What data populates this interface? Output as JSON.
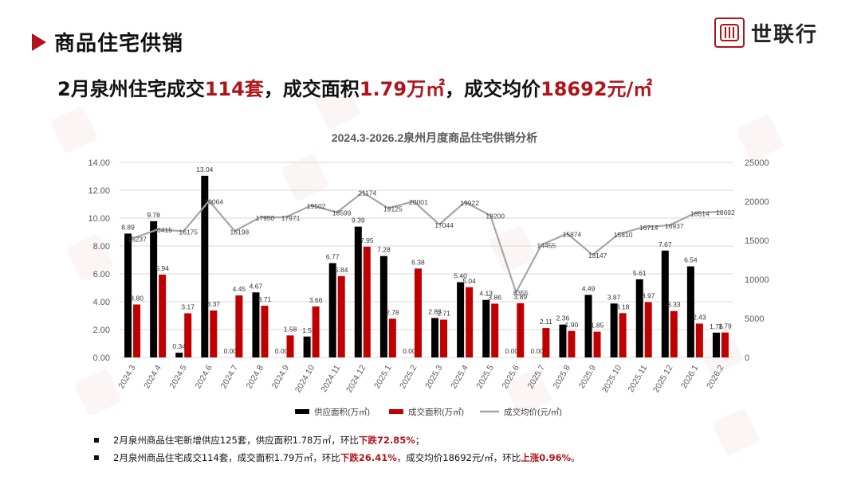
{
  "header": {
    "section_title": "商品住宅供销",
    "logo_text": "世联行",
    "brand_color": "#b0141a"
  },
  "headline": {
    "part1": "2月泉州住宅成交",
    "sets": "114套",
    "part2": "，成交面积",
    "area": "1.79万㎡",
    "part3": "，成交均价",
    "price": "18692元/㎡"
  },
  "chart_data": {
    "type": "bar",
    "title": "2024.3-2026.2泉州月度商品住宅供销分析",
    "categories": [
      "2024.3",
      "2024.4",
      "2024.5",
      "2024.6",
      "2024.7",
      "2024.8",
      "2024.9",
      "2024.10",
      "2024.11",
      "2024.12",
      "2025.1",
      "2025.2",
      "2025.3",
      "2025.4",
      "2025.5",
      "2025.6",
      "2025.7",
      "2025.8",
      "2025.9",
      "2025.10",
      "2025.11",
      "2025.12",
      "2026.1",
      "2026.2"
    ],
    "series": [
      {
        "name": "供应面积(万㎡)",
        "kind": "bar",
        "axis": "left",
        "color": "#000000",
        "values": [
          8.89,
          9.78,
          0.34,
          13.04,
          0.0,
          4.67,
          0.0,
          1.5,
          6.77,
          9.39,
          7.28,
          0.0,
          2.83,
          5.4,
          4.13,
          0.0,
          0.0,
          2.36,
          4.49,
          3.87,
          5.61,
          7.67,
          6.54,
          1.78
        ],
        "labels": [
          "8.89",
          "9.78",
          "0.34",
          "13.04",
          "0.00",
          "4.67",
          "0.00",
          "1.5",
          "6.77",
          "9.39",
          "7.28",
          "0.00",
          "2.83",
          "5.40",
          "4.13",
          "0.00",
          "0.00",
          "2.36",
          "4.49",
          "3.87",
          "5.61",
          "7.67",
          "6.54",
          "1.78"
        ]
      },
      {
        "name": "成交面积(万㎡)",
        "kind": "bar",
        "axis": "left",
        "color": "#c00000",
        "values": [
          3.8,
          5.94,
          3.17,
          3.37,
          4.45,
          3.71,
          1.58,
          3.66,
          5.84,
          7.95,
          2.78,
          6.38,
          2.71,
          5.04,
          3.86,
          3.89,
          2.11,
          1.9,
          1.85,
          3.18,
          3.97,
          3.33,
          2.43,
          1.79
        ],
        "labels": [
          "3.80",
          "5.94",
          "3.17",
          "3.37",
          "4.45",
          "3.71",
          "1.58",
          "3.66",
          "5.84",
          "7.95",
          "2.78",
          "6.38",
          "2.71",
          "5.04",
          "3.86",
          "3.89",
          "2.11",
          "1.90",
          "1.85",
          "3.18",
          "3.97",
          "3.33",
          "2.43",
          "1.79"
        ]
      },
      {
        "name": "成交均价(元/㎡)",
        "kind": "line",
        "axis": "right",
        "color": "#a6a6a6",
        "values": [
          15237,
          16415,
          16175,
          20064,
          16198,
          17950,
          17971,
          19502,
          18599,
          21174,
          19125,
          20001,
          17044,
          19922,
          18200,
          8355,
          14455,
          15874,
          13147,
          15810,
          16714,
          16937,
          18514,
          18692
        ],
        "labels": [
          "15237",
          "16415",
          "16175",
          "20064",
          "16198",
          "17950",
          "17971",
          "19502",
          "18599",
          "21174",
          "19125",
          "20001",
          "17044",
          "19922",
          "18200",
          "8355",
          "14455",
          "15874",
          "13147",
          "15810",
          "16714",
          "16937",
          "18514",
          "18692"
        ]
      }
    ],
    "left_axis": {
      "min": 0,
      "max": 14,
      "step": 2,
      "tick_labels": [
        "0.00",
        "2.00",
        "4.00",
        "6.00",
        "8.00",
        "10.00",
        "12.00",
        "14.00"
      ]
    },
    "right_axis": {
      "min": 0,
      "max": 25000,
      "step": 5000,
      "tick_labels": [
        "0",
        "5000",
        "10000",
        "15000",
        "20000",
        "25000"
      ]
    },
    "grid": true,
    "legend_position": "bottom"
  },
  "notes": [
    {
      "a": "2月泉州商品住宅新增供应125套，供应面积1.78万㎡，环比",
      "b": "下跌72.85%",
      "c": "；"
    },
    {
      "a": "2月泉州商品住宅成交114套，成交面积1.79万㎡，环比",
      "b": "下跌26.41%",
      "c": "，成交均价18692元/㎡，环比",
      "d": "上涨0.96%",
      "e": "。"
    }
  ]
}
